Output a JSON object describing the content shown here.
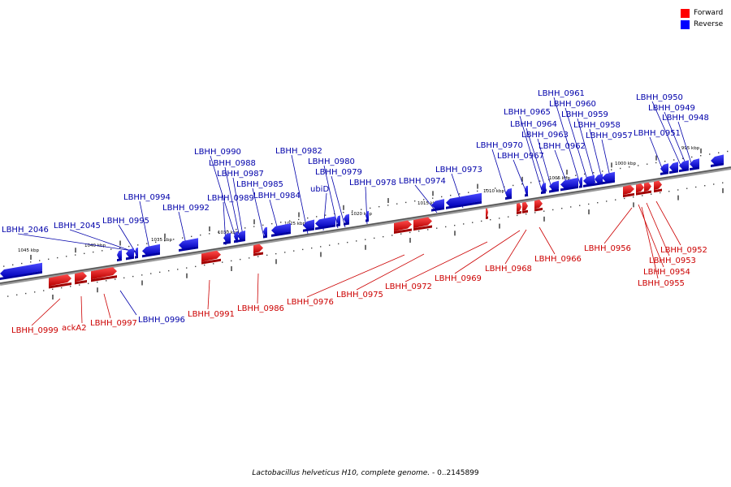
{
  "legend": {
    "forward_label": "Forward",
    "reverse_label": "Reverse",
    "forward_color": "#ff0000",
    "reverse_color": "#0000ff"
  },
  "caption": {
    "organism": "Lactobacillus helveticus H10, complete genome.",
    "range": " - 0..2145899"
  },
  "scale_labels": [
    "1045 kbp",
    "1040 kbp",
    "1035 kbp",
    "1030 kbp",
    "1025 kbp",
    "1020 kbp",
    "1015 kbp",
    "1010 kbp",
    "1005 kbp",
    "1000 kbp",
    "995 kbp"
  ],
  "reverse_genes": [
    "LBHH_2046",
    "LBHH_2045",
    "LBHH_0995",
    "LBHH_0994",
    "LBHH_0992",
    "LBHH_0990",
    "LBHH_0988",
    "LBHH_0987",
    "LBHH_0989",
    "LBHH_0985",
    "LBHH_0984",
    "LBHH_0982",
    "ubiD",
    "LBHH_0980",
    "LBHH_0979",
    "LBHH_0978",
    "LBHH_0974",
    "LBHH_0973",
    "LBHH_0970",
    "LBHH_0967",
    "LBHH_0965",
    "LBHH_0964",
    "LBHH_0963",
    "LBHH_0962",
    "LBHH_0961",
    "LBHH_0960",
    "LBHH_0959",
    "LBHH_0958",
    "LBHH_0957",
    "LBHH_0950",
    "LBHH_0949",
    "LBHH_0948",
    "LBHH_0951",
    "LBHH_0996"
  ],
  "forward_genes": [
    "LBHH_0999",
    "ackA2",
    "LBHH_0997",
    "LBHH_0991",
    "LBHH_0986",
    "LBHH_0976",
    "LBHH_0975",
    "LBHH_0972",
    "LBHH_0969",
    "LBHH_0968",
    "LBHH_0966",
    "LBHH_0956",
    "LBHH_0952",
    "LBHH_0953",
    "LBHH_0954",
    "LBHH_0955"
  ]
}
